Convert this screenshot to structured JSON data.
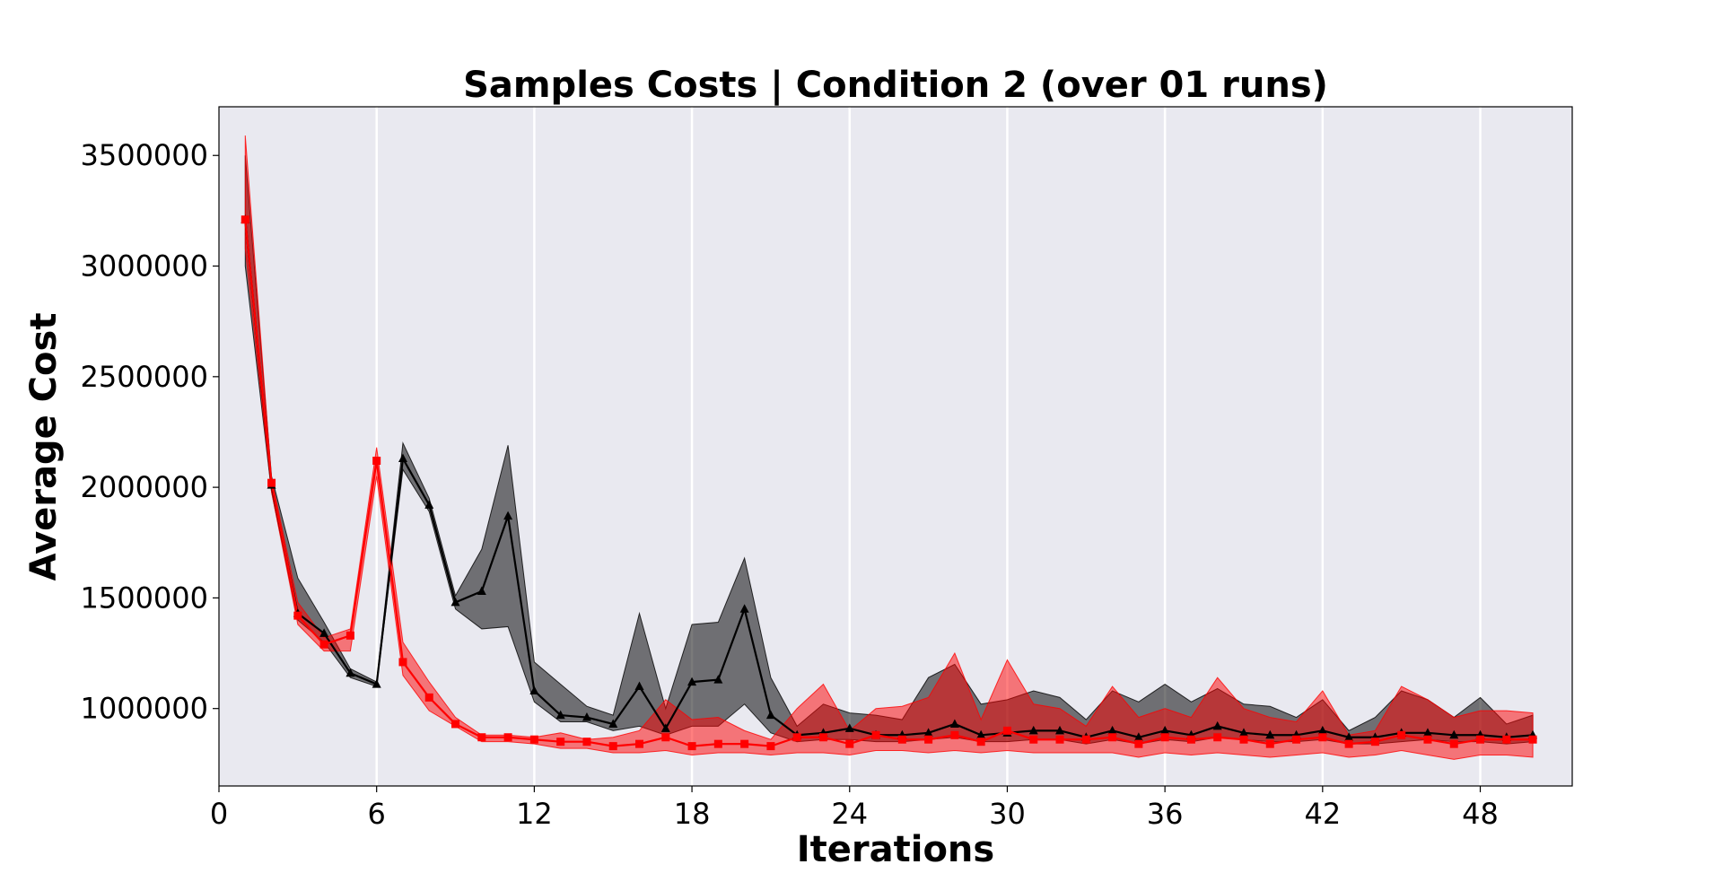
{
  "chart_data": {
    "type": "line",
    "title": "Samples Costs | Condition 2 (over 01 runs)",
    "xlabel": "Iterations",
    "ylabel": "Average Cost",
    "xlim": [
      0,
      51.5
    ],
    "ylim": [
      650000,
      3720000
    ],
    "xticks": [
      0,
      6,
      12,
      18,
      24,
      30,
      36,
      42,
      48
    ],
    "xtick_labels": [
      "0",
      "6",
      "12",
      "18",
      "24",
      "30",
      "36",
      "42",
      "48"
    ],
    "yticks": [
      1000000,
      1500000,
      2000000,
      2500000,
      3000000,
      3500000
    ],
    "ytick_labels": [
      "1000000",
      "1500000",
      "2000000",
      "2500000",
      "3000000",
      "3500000"
    ],
    "grid": true,
    "grid_axis": "x",
    "background": "#e9e9f0",
    "x": [
      1,
      2,
      3,
      4,
      5,
      6,
      7,
      8,
      9,
      10,
      11,
      12,
      13,
      14,
      15,
      16,
      17,
      18,
      19,
      20,
      21,
      22,
      23,
      24,
      25,
      26,
      27,
      28,
      29,
      30,
      31,
      32,
      33,
      34,
      35,
      36,
      37,
      38,
      39,
      40,
      41,
      42,
      43,
      44,
      45,
      46,
      47,
      48,
      49,
      50
    ],
    "series": [
      {
        "color": "#000000",
        "marker": "triangle",
        "values": [
          3210000,
          2010000,
          1430000,
          1340000,
          1160000,
          1110000,
          2130000,
          1920000,
          1480000,
          1530000,
          1870000,
          1080000,
          970000,
          960000,
          930000,
          1100000,
          910000,
          1120000,
          1130000,
          1450000,
          970000,
          880000,
          890000,
          910000,
          880000,
          880000,
          890000,
          930000,
          880000,
          890000,
          900000,
          900000,
          870000,
          900000,
          870000,
          900000,
          880000,
          920000,
          890000,
          880000,
          880000,
          900000,
          870000,
          870000,
          890000,
          890000,
          880000,
          880000,
          870000,
          880000
        ],
        "lower": [
          3000000,
          1980000,
          1400000,
          1300000,
          1140000,
          1100000,
          2080000,
          1890000,
          1450000,
          1360000,
          1370000,
          1030000,
          940000,
          940000,
          900000,
          920000,
          880000,
          920000,
          920000,
          1020000,
          890000,
          850000,
          860000,
          860000,
          850000,
          850000,
          860000,
          870000,
          850000,
          850000,
          860000,
          860000,
          840000,
          860000,
          840000,
          860000,
          850000,
          870000,
          860000,
          850000,
          850000,
          860000,
          840000,
          840000,
          850000,
          860000,
          850000,
          850000,
          840000,
          850000
        ],
        "upper": [
          3500000,
          2050000,
          1590000,
          1390000,
          1180000,
          1120000,
          2200000,
          1950000,
          1510000,
          1720000,
          2190000,
          1210000,
          1110000,
          1010000,
          970000,
          1430000,
          1000000,
          1380000,
          1390000,
          1680000,
          1140000,
          920000,
          1020000,
          980000,
          970000,
          950000,
          1140000,
          1200000,
          1020000,
          1040000,
          1080000,
          1050000,
          950000,
          1080000,
          1030000,
          1110000,
          1030000,
          1090000,
          1020000,
          1010000,
          960000,
          1040000,
          900000,
          960000,
          1080000,
          1040000,
          960000,
          1050000,
          930000,
          970000
        ]
      },
      {
        "color": "#ff0000",
        "marker": "square",
        "values": [
          3210000,
          2020000,
          1420000,
          1290000,
          1330000,
          2120000,
          1210000,
          1050000,
          930000,
          870000,
          870000,
          860000,
          850000,
          850000,
          830000,
          840000,
          870000,
          830000,
          840000,
          840000,
          830000,
          870000,
          870000,
          840000,
          880000,
          860000,
          860000,
          880000,
          850000,
          900000,
          860000,
          860000,
          860000,
          870000,
          840000,
          870000,
          860000,
          870000,
          860000,
          840000,
          860000,
          870000,
          840000,
          850000,
          880000,
          860000,
          840000,
          860000,
          860000,
          860000
        ],
        "lower": [
          3080000,
          1980000,
          1380000,
          1260000,
          1260000,
          2050000,
          1150000,
          990000,
          920000,
          850000,
          850000,
          840000,
          820000,
          820000,
          800000,
          800000,
          810000,
          790000,
          800000,
          800000,
          790000,
          800000,
          800000,
          790000,
          810000,
          810000,
          800000,
          810000,
          800000,
          810000,
          800000,
          800000,
          800000,
          800000,
          780000,
          800000,
          790000,
          800000,
          790000,
          780000,
          790000,
          800000,
          780000,
          790000,
          810000,
          790000,
          770000,
          790000,
          790000,
          780000
        ],
        "upper": [
          3590000,
          2040000,
          1480000,
          1320000,
          1360000,
          2180000,
          1300000,
          1120000,
          960000,
          880000,
          880000,
          870000,
          890000,
          860000,
          870000,
          900000,
          1040000,
          950000,
          960000,
          900000,
          860000,
          1000000,
          1110000,
          900000,
          1000000,
          1010000,
          1050000,
          1250000,
          950000,
          1220000,
          1020000,
          1000000,
          920000,
          1100000,
          960000,
          1000000,
          960000,
          1140000,
          1000000,
          960000,
          940000,
          1080000,
          880000,
          900000,
          1100000,
          1040000,
          960000,
          990000,
          990000,
          980000
        ]
      }
    ]
  }
}
